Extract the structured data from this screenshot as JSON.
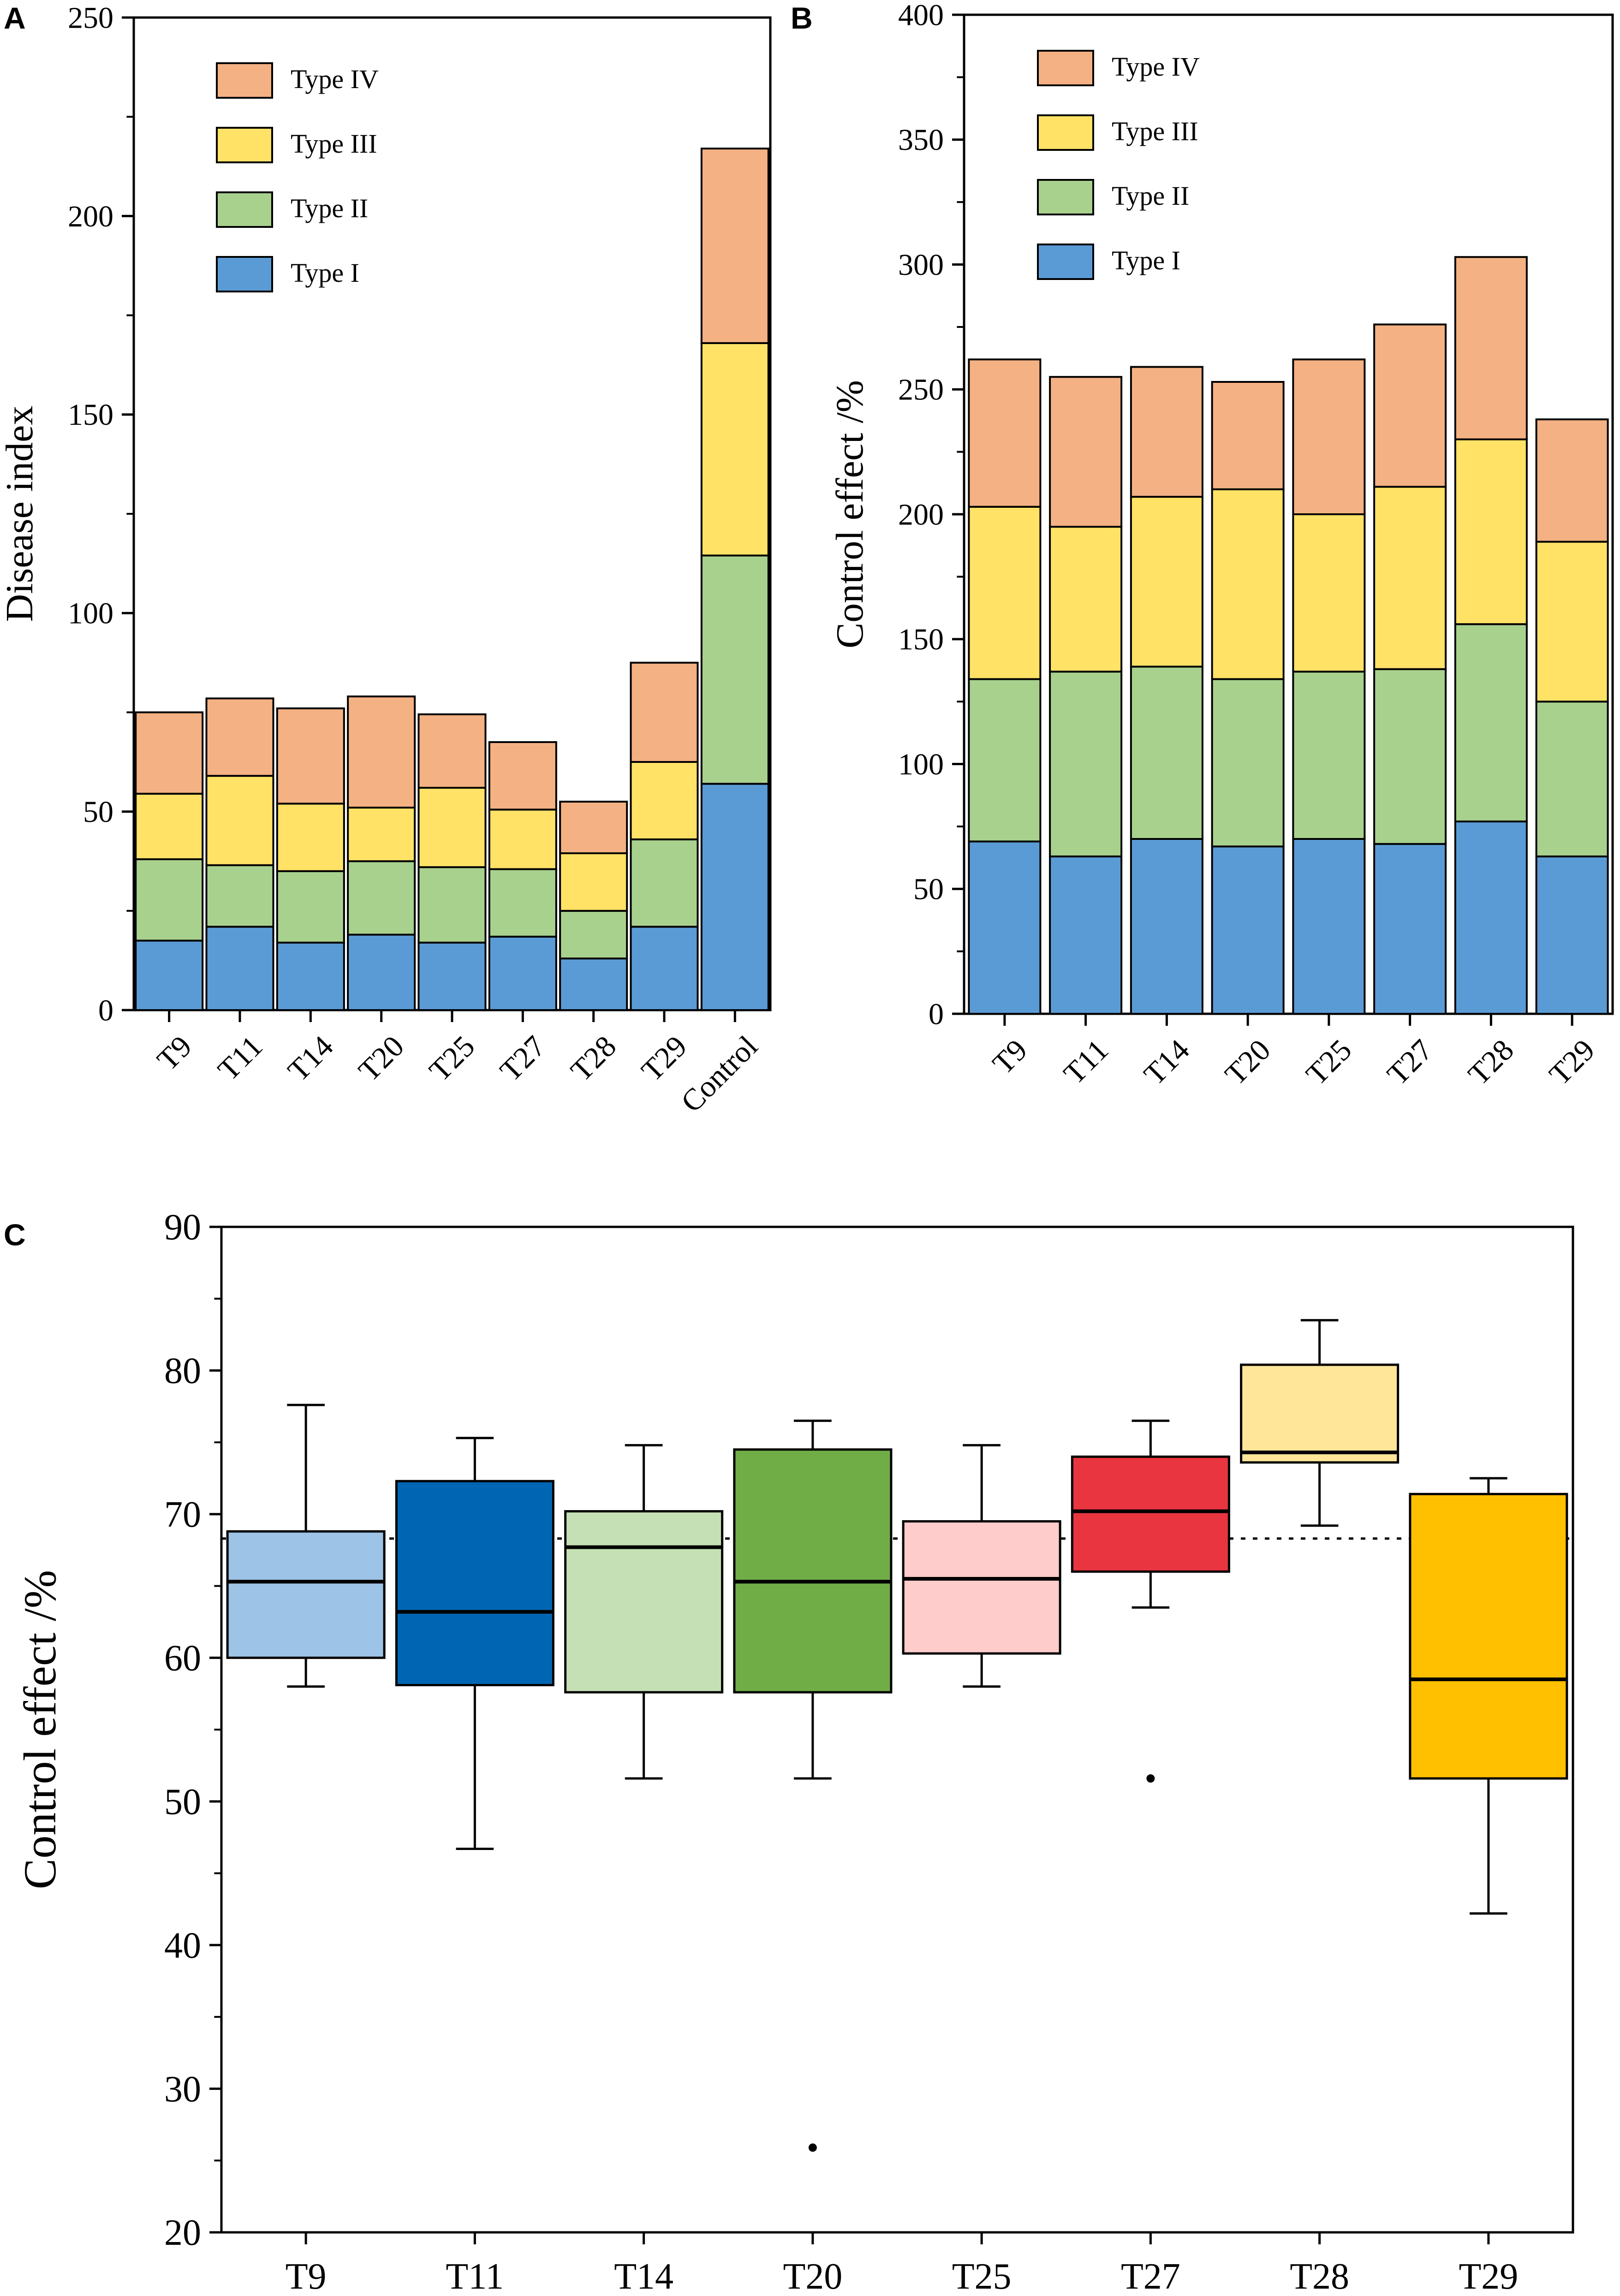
{
  "figure": {
    "panel_labels": [
      "A",
      "B",
      "C"
    ]
  },
  "colors": {
    "type1": "#5b9bd5",
    "type2": "#a9d18e",
    "type3": "#ffe266",
    "type4": "#f4b183",
    "axis": "#000000",
    "box_T9": "#9dc3e6",
    "box_T11": "#0066b3",
    "box_T14": "#c5e0b4",
    "box_T20": "#70ad47",
    "box_T25": "#ffcccc",
    "box_T27": "#e8353f",
    "box_T28": "#ffe699",
    "box_T29": "#ffc000"
  },
  "chart_data": [
    {
      "id": "A",
      "type": "bar",
      "stacked": true,
      "title": "",
      "xlabel": "",
      "ylabel": "Disease index",
      "ylim": [
        0,
        250
      ],
      "yticks": [
        0,
        50,
        100,
        150,
        200,
        250
      ],
      "grid": false,
      "legend_position": "top-left",
      "legend_order": [
        "Type IV",
        "Type III",
        "Type II",
        "Type I"
      ],
      "categories": [
        "T9",
        "T11",
        "T14",
        "T20",
        "T25",
        "T27",
        "T28",
        "T29",
        "Control"
      ],
      "series": [
        {
          "name": "Type I",
          "color_key": "type1",
          "values": [
            17.5,
            21,
            17,
            19,
            17,
            18.5,
            13,
            21,
            57
          ]
        },
        {
          "name": "Type II",
          "color_key": "type2",
          "values": [
            20.5,
            15.5,
            18,
            18.5,
            19,
            17,
            12,
            22,
            57.5
          ]
        },
        {
          "name": "Type III",
          "color_key": "type3",
          "values": [
            16.5,
            22.5,
            17,
            13.5,
            20,
            15,
            14.5,
            19.5,
            53.5
          ]
        },
        {
          "name": "Type IV",
          "color_key": "type4",
          "values": [
            20.5,
            19.5,
            24,
            28,
            18.5,
            17,
            13,
            25,
            49
          ]
        }
      ]
    },
    {
      "id": "B",
      "type": "bar",
      "stacked": true,
      "title": "",
      "xlabel": "",
      "ylabel": "Control effect /%",
      "ylim": [
        0,
        400
      ],
      "yticks": [
        0,
        50,
        100,
        150,
        200,
        250,
        300,
        350,
        400
      ],
      "grid": false,
      "legend_position": "top-left",
      "legend_order": [
        "Type IV",
        "Type III",
        "Type II",
        "Type I"
      ],
      "categories": [
        "T9",
        "T11",
        "T14",
        "T20",
        "T25",
        "T27",
        "T28",
        "T29"
      ],
      "series": [
        {
          "name": "Type I",
          "color_key": "type1",
          "values": [
            69,
            63,
            70,
            67,
            70,
            68,
            77,
            63
          ]
        },
        {
          "name": "Type II",
          "color_key": "type2",
          "values": [
            65,
            74,
            69,
            67,
            67,
            70,
            79,
            62
          ]
        },
        {
          "name": "Type III",
          "color_key": "type3",
          "values": [
            69,
            58,
            68,
            76,
            63,
            73,
            74,
            64
          ]
        },
        {
          "name": "Type IV",
          "color_key": "type4",
          "values": [
            59,
            60,
            52,
            43,
            62,
            65,
            73,
            49
          ]
        }
      ]
    },
    {
      "id": "C",
      "type": "box",
      "title": "",
      "xlabel": "",
      "ylabel": "Control effect /%",
      "ylim": [
        20,
        90
      ],
      "yticks": [
        20,
        30,
        40,
        50,
        60,
        70,
        80,
        90
      ],
      "grid": false,
      "reference_line": 68.3,
      "categories": [
        "T9",
        "T11",
        "T14",
        "T20",
        "T25",
        "T27",
        "T28",
        "T29"
      ],
      "boxes": [
        {
          "name": "T9",
          "color_key": "box_T9",
          "whisker_low": 58,
          "q1": 60,
          "median": 65.3,
          "q3": 68.8,
          "whisker_high": 77.6,
          "outliers": []
        },
        {
          "name": "T11",
          "color_key": "box_T11",
          "whisker_low": 46.7,
          "q1": 58.1,
          "median": 63.2,
          "q3": 72.3,
          "whisker_high": 75.3,
          "outliers": []
        },
        {
          "name": "T14",
          "color_key": "box_T14",
          "whisker_low": 51.6,
          "q1": 57.6,
          "median": 67.7,
          "q3": 70.2,
          "whisker_high": 74.8,
          "outliers": []
        },
        {
          "name": "T20",
          "color_key": "box_T20",
          "whisker_low": 51.6,
          "q1": 57.6,
          "median": 65.3,
          "q3": 74.5,
          "whisker_high": 76.5,
          "outliers": [
            25.9
          ]
        },
        {
          "name": "T25",
          "color_key": "box_T25",
          "whisker_low": 58,
          "q1": 60.3,
          "median": 65.5,
          "q3": 69.5,
          "whisker_high": 74.8,
          "outliers": []
        },
        {
          "name": "T27",
          "color_key": "box_T27",
          "whisker_low": 63.5,
          "q1": 66,
          "median": 70.2,
          "q3": 74,
          "whisker_high": 76.5,
          "outliers": [
            51.6
          ]
        },
        {
          "name": "T28",
          "color_key": "box_T28",
          "whisker_low": 69.2,
          "q1": 73.6,
          "median": 74.3,
          "q3": 80.4,
          "whisker_high": 83.5,
          "outliers": []
        },
        {
          "name": "T29",
          "color_key": "box_T29",
          "whisker_low": 42.2,
          "q1": 51.6,
          "median": 58.5,
          "q3": 71.4,
          "whisker_high": 72.5,
          "outliers": []
        }
      ]
    }
  ]
}
